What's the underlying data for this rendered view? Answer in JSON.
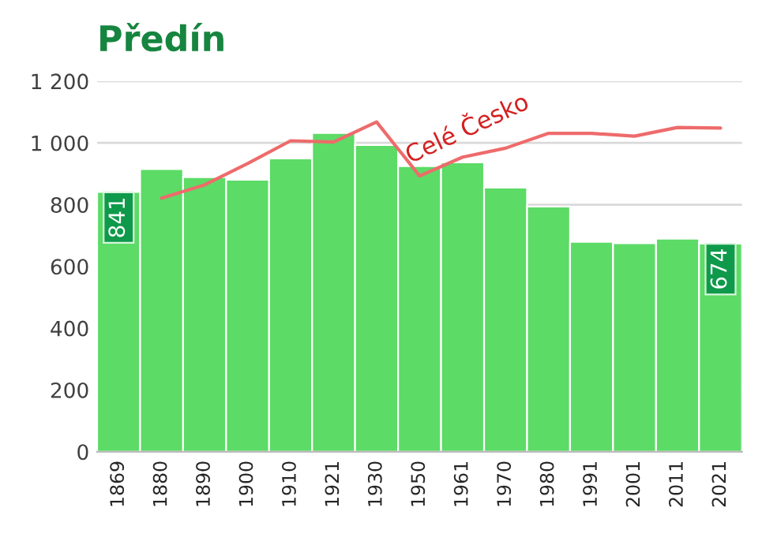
{
  "chart_data": {
    "type": "bar",
    "title": "Předín",
    "categories": [
      "1869",
      "1880",
      "1890",
      "1900",
      "1910",
      "1921",
      "1930",
      "1950",
      "1961",
      "1970",
      "1980",
      "1991",
      "2001",
      "2011",
      "2021"
    ],
    "series": [
      {
        "color": "#5cdb66",
        "values": [
          841,
          915,
          889,
          881,
          950,
          1032,
          993,
          925,
          937,
          855,
          794,
          680,
          675,
          690,
          674
        ],
        "value_labels": [
          "841",
          null,
          null,
          null,
          null,
          null,
          null,
          null,
          null,
          null,
          null,
          null,
          null,
          null,
          "674"
        ]
      },
      {
        "type": "line",
        "name": "Celé Česko",
        "color": "#ee6b6b",
        "values": [
          null,
          821,
          864,
          933,
          1007,
          1003,
          1068,
          893,
          954,
          983,
          1031,
          1031,
          1022,
          1050,
          1048
        ]
      }
    ],
    "ylim": [
      0,
      1200
    ],
    "yticks": [
      0,
      200,
      400,
      600,
      800,
      {
        "value": 1000,
        "label": "1 000"
      },
      {
        "value": 1200,
        "label": "1 200"
      }
    ],
    "grid": "y",
    "legend": false,
    "marker": "none",
    "line_style": "solid"
  }
}
